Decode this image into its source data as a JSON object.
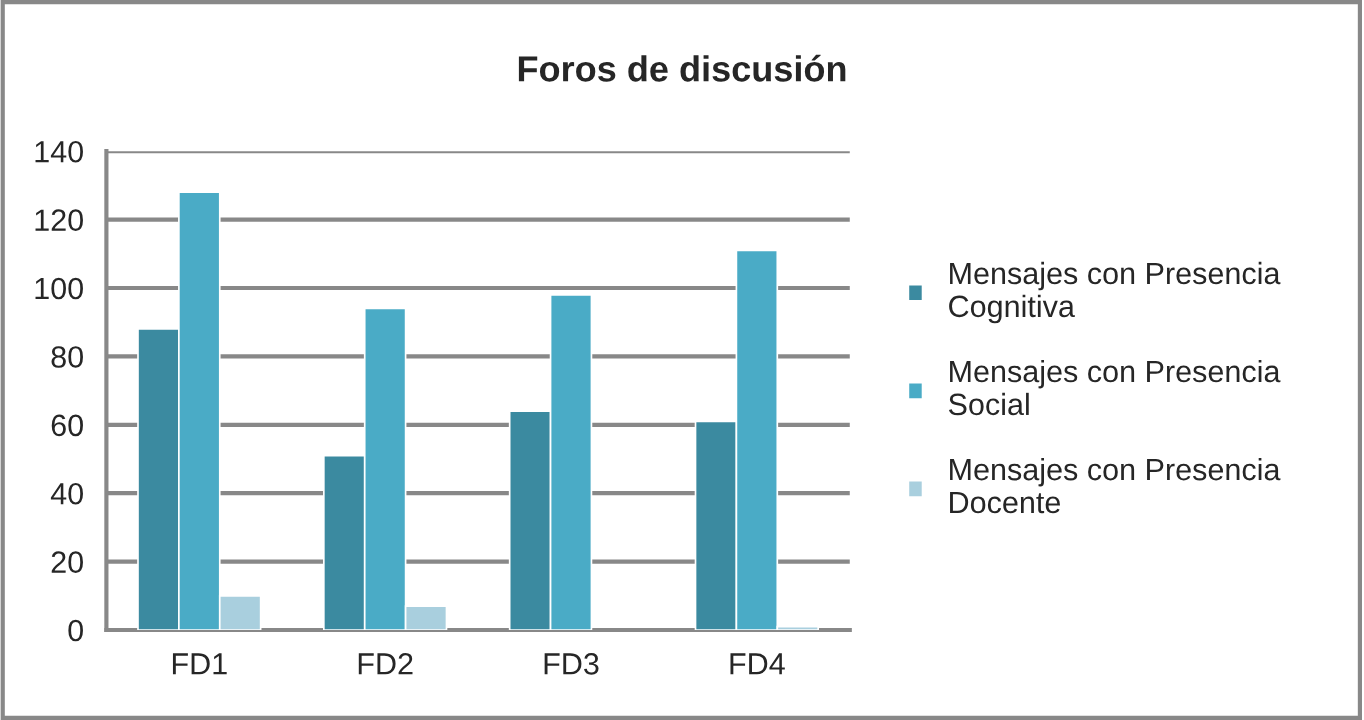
{
  "chart_data": {
    "type": "bar",
    "title": "Foros de discusión",
    "categories": [
      "FD1",
      "FD2",
      "FD3",
      "FD4"
    ],
    "series": [
      {
        "name": "Mensajes con Presencia\nCognitiva",
        "color": "#3b8aa0",
        "values": [
          88,
          51,
          64,
          61
        ]
      },
      {
        "name": "Mensajes con Presencia\nSocial",
        "color": "#4aabc6",
        "values": [
          128,
          94,
          98,
          111
        ]
      },
      {
        "name": "Mensajes con Presencia\nDocente",
        "color": "#a9cfde",
        "values": [
          10,
          7,
          null,
          1
        ]
      }
    ],
    "ylim": [
      0,
      140
    ],
    "yticks": [
      0,
      20,
      40,
      60,
      80,
      100,
      120,
      140
    ],
    "grid": "y",
    "legend": "right"
  }
}
